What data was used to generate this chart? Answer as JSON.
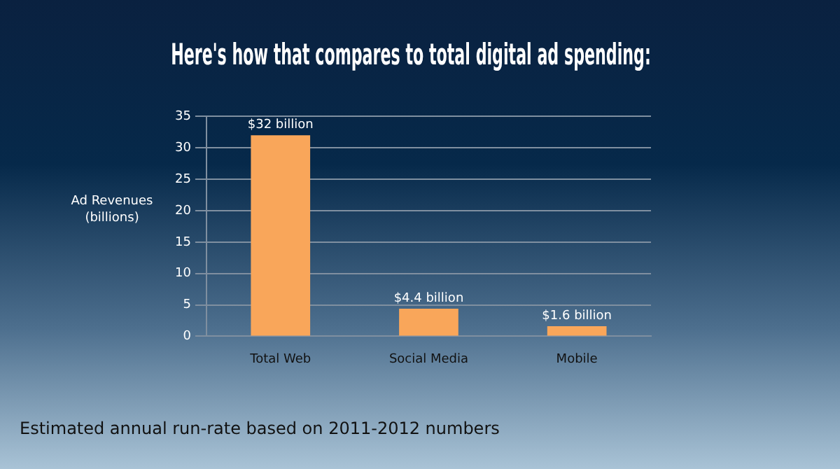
{
  "chart_data": {
    "type": "bar",
    "title": "Here's how that compares to total digital ad spending:",
    "ylabel": "Ad Revenues\n(billions)",
    "categories": [
      "Total Web",
      "Social Media",
      "Mobile"
    ],
    "values": [
      32,
      4.4,
      1.6
    ],
    "value_labels": [
      "$32 billion",
      "$4.4 billion",
      "$1.6 billion"
    ],
    "color": "#f9a65a",
    "ylim": [
      0,
      35
    ],
    "yticks": [
      0,
      5,
      10,
      15,
      20,
      25,
      30,
      35
    ],
    "grid": "y",
    "legend": false,
    "annotations": [
      "Estimated annual run-rate based on 2011-2012 numbers"
    ]
  }
}
